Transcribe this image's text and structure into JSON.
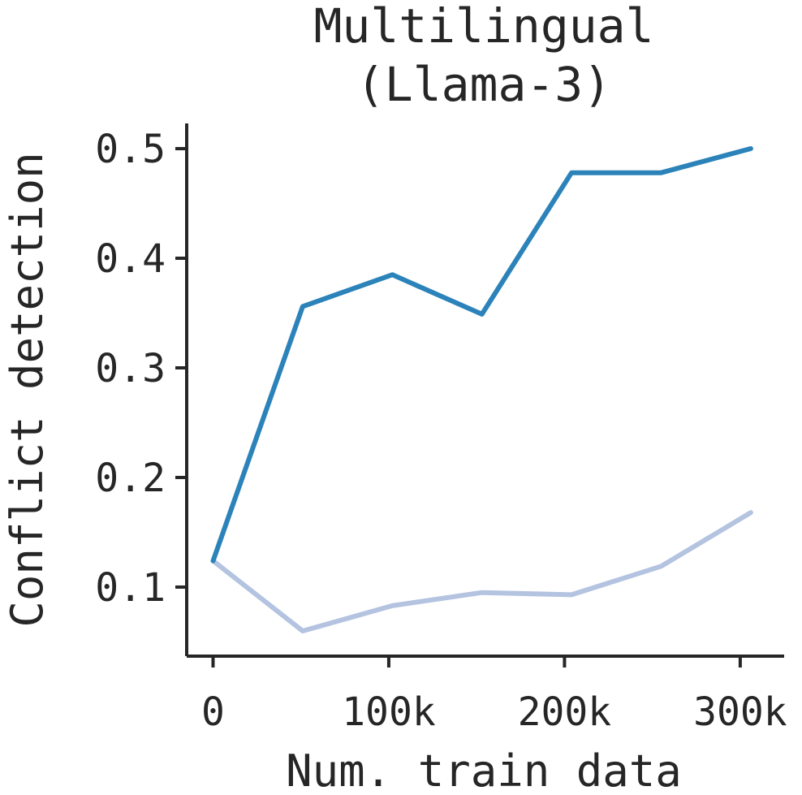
{
  "chart_data": {
    "type": "line",
    "title": [
      "Multilingual",
      "(Llama-3)"
    ],
    "xlabel": "Num. train data",
    "ylabel": "Conflict detection",
    "xlim": [
      -15000,
      325000
    ],
    "ylim": [
      0.037,
      0.523
    ],
    "x_ticks": [
      0,
      100000,
      200000,
      300000
    ],
    "x_tick_labels": [
      "0",
      "100k",
      "200k",
      "300k"
    ],
    "y_ticks": [
      0.1,
      0.2,
      0.3,
      0.4,
      0.5
    ],
    "y_tick_labels": [
      "0.1",
      "0.2",
      "0.3",
      "0.4",
      "0.5"
    ],
    "grid": false,
    "x": [
      0,
      51000,
      102000,
      153000,
      204000,
      255000,
      306000
    ],
    "series": [
      {
        "color": "#2b83ba",
        "values": [
          0.124,
          0.356,
          0.385,
          0.349,
          0.478,
          0.478,
          0.5
        ]
      },
      {
        "color": "#b3c3e0",
        "values": [
          0.124,
          0.06,
          0.083,
          0.095,
          0.093,
          0.119,
          0.168
        ]
      }
    ]
  }
}
